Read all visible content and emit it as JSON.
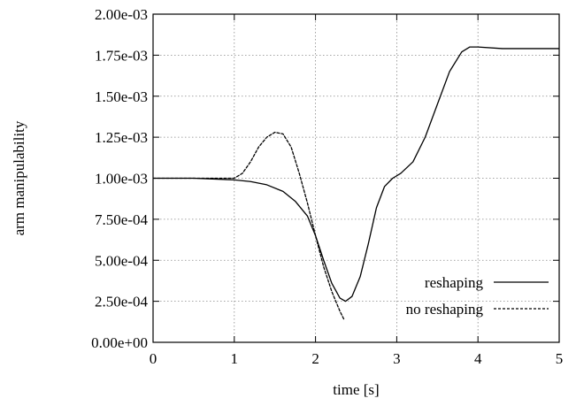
{
  "chart_data": {
    "type": "line",
    "xlabel": "time [s]",
    "ylabel": "arm manipulability",
    "xlim": [
      0,
      5
    ],
    "ylim": [
      0,
      0.002
    ],
    "grid": true,
    "legend_position": "bottom-right",
    "x_ticks": [
      0,
      1,
      2,
      3,
      4,
      5
    ],
    "x_tick_labels": [
      "0",
      "1",
      "2",
      "3",
      "4",
      "5"
    ],
    "y_ticks": [
      0,
      0.00025,
      0.0005,
      0.00075,
      0.001,
      0.00125,
      0.0015,
      0.00175,
      0.002
    ],
    "y_tick_labels": [
      "0.00e+00",
      "2.50e-04",
      "5.00e-04",
      "7.50e-04",
      "1.00e-03",
      "1.25e-03",
      "1.50e-03",
      "1.75e-03",
      "2.00e-03"
    ],
    "series": [
      {
        "name": "reshaping",
        "style": "solid",
        "color": "#000000",
        "points": [
          [
            0,
            0.001
          ],
          [
            0.5,
            0.001
          ],
          [
            1.0,
            0.00099
          ],
          [
            1.2,
            0.00098
          ],
          [
            1.4,
            0.00096
          ],
          [
            1.6,
            0.00092
          ],
          [
            1.75,
            0.00086
          ],
          [
            1.9,
            0.00077
          ],
          [
            2.0,
            0.00065
          ],
          [
            2.1,
            0.0005
          ],
          [
            2.2,
            0.00036
          ],
          [
            2.3,
            0.00027
          ],
          [
            2.37,
            0.00025
          ],
          [
            2.45,
            0.00028
          ],
          [
            2.55,
            0.0004
          ],
          [
            2.65,
            0.0006
          ],
          [
            2.75,
            0.00082
          ],
          [
            2.85,
            0.00095
          ],
          [
            2.95,
            0.001
          ],
          [
            3.05,
            0.00103
          ],
          [
            3.2,
            0.0011
          ],
          [
            3.35,
            0.00125
          ],
          [
            3.5,
            0.00145
          ],
          [
            3.65,
            0.00165
          ],
          [
            3.8,
            0.00177
          ],
          [
            3.9,
            0.0018
          ],
          [
            4.0,
            0.0018
          ],
          [
            4.3,
            0.00179
          ],
          [
            5.0,
            0.00179
          ]
        ]
      },
      {
        "name": "no reshaping",
        "style": "dashed",
        "color": "#000000",
        "points": [
          [
            0,
            0.001
          ],
          [
            0.5,
            0.001
          ],
          [
            1.0,
            0.001
          ],
          [
            1.1,
            0.00103
          ],
          [
            1.2,
            0.0011
          ],
          [
            1.3,
            0.00119
          ],
          [
            1.4,
            0.00125
          ],
          [
            1.5,
            0.00128
          ],
          [
            1.6,
            0.00127
          ],
          [
            1.7,
            0.00119
          ],
          [
            1.8,
            0.00103
          ],
          [
            1.9,
            0.00085
          ],
          [
            2.0,
            0.00065
          ],
          [
            2.1,
            0.00046
          ],
          [
            2.2,
            0.00031
          ],
          [
            2.3,
            0.00019
          ],
          [
            2.35,
            0.00014
          ]
        ]
      }
    ]
  }
}
